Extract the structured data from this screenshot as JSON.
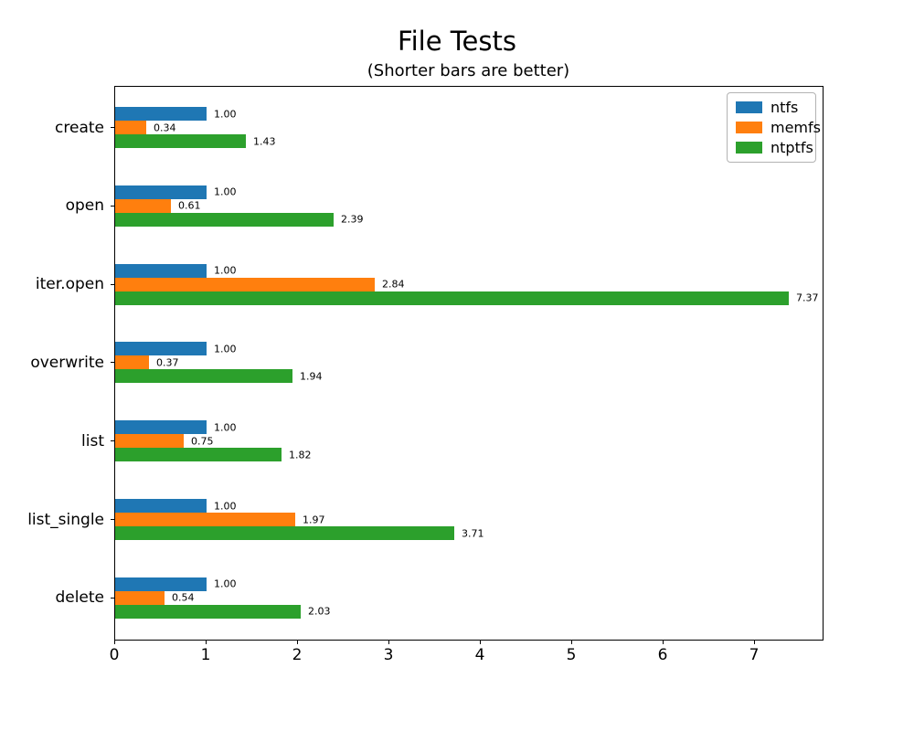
{
  "chart_data": {
    "type": "bar",
    "orientation": "horizontal",
    "title": "File Tests",
    "subtitle": "(Shorter bars are better)",
    "categories": [
      "create",
      "open",
      "iter.open",
      "overwrite",
      "list",
      "list_single",
      "delete"
    ],
    "series": [
      {
        "name": "ntfs",
        "color": "#1f77b4",
        "values": [
          1.0,
          1.0,
          1.0,
          1.0,
          1.0,
          1.0,
          1.0
        ]
      },
      {
        "name": "memfs",
        "color": "#ff7f0e",
        "values": [
          0.34,
          0.61,
          2.84,
          0.37,
          0.75,
          1.97,
          0.54
        ]
      },
      {
        "name": "ntptfs",
        "color": "#2ca02c",
        "values": [
          1.43,
          2.39,
          7.37,
          1.94,
          1.82,
          3.71,
          2.03
        ]
      }
    ],
    "bar_labels": [
      [
        "1.00",
        "1.00",
        "1.00",
        "1.00",
        "1.00",
        "1.00",
        "1.00"
      ],
      [
        "0.34",
        "0.61",
        "2.84",
        "0.37",
        "0.75",
        "1.97",
        "0.54"
      ],
      [
        "1.43",
        "2.39",
        "7.37",
        "1.94",
        "1.82",
        "3.71",
        "2.03"
      ]
    ],
    "x_tick_labels": [
      "0",
      "1",
      "2",
      "3",
      "4",
      "5",
      "6",
      "7"
    ],
    "x_ticks": [
      0,
      1,
      2,
      3,
      4,
      5,
      6,
      7
    ],
    "xlim": [
      0,
      7.75
    ],
    "xlabel": "",
    "ylabel": "",
    "grid": false,
    "legend_position": "upper right",
    "legend_entries": [
      "ntfs",
      "memfs",
      "ntptfs"
    ],
    "background_color": "#ffffff",
    "spine_color": "#000000"
  }
}
